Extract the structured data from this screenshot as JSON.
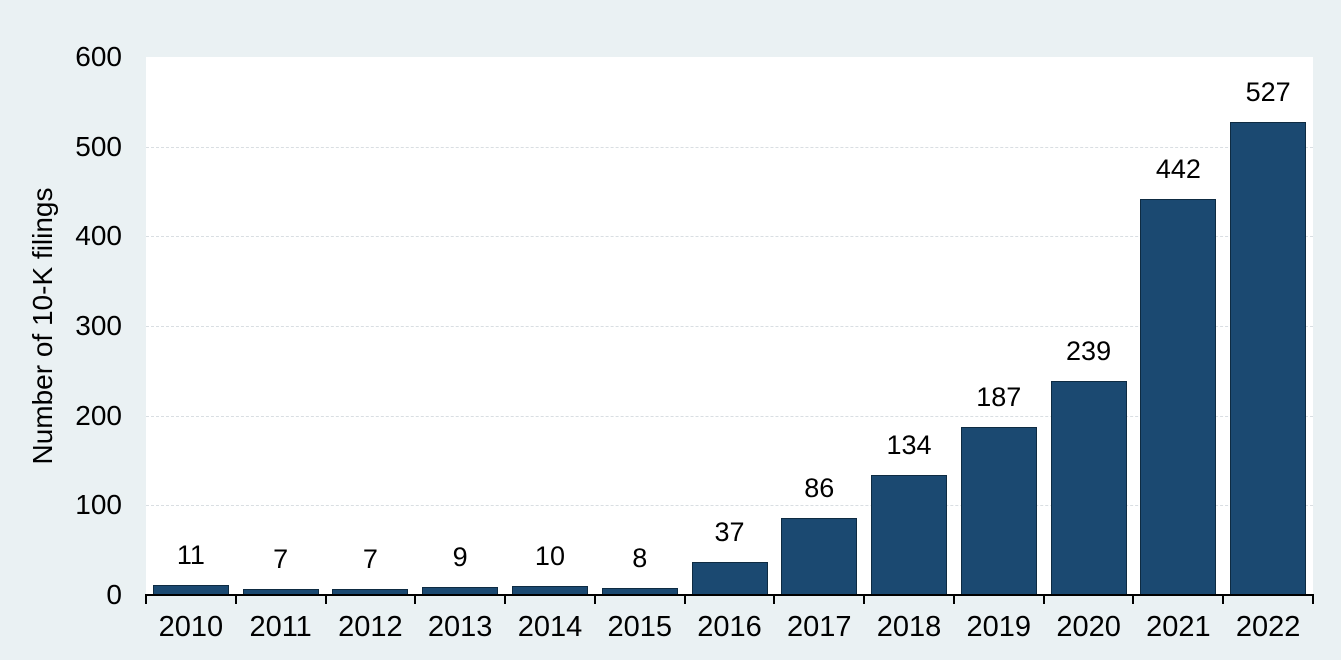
{
  "chart_data": {
    "type": "bar",
    "title": "",
    "xlabel": "",
    "ylabel": "Number of 10-K filings",
    "categories": [
      "2010",
      "2011",
      "2012",
      "2013",
      "2014",
      "2015",
      "2016",
      "2017",
      "2018",
      "2019",
      "2020",
      "2021",
      "2022"
    ],
    "values": [
      11,
      7,
      7,
      9,
      10,
      8,
      37,
      86,
      134,
      187,
      239,
      442,
      527
    ],
    "bar_value_labels": [
      "11",
      "7",
      "7",
      "9",
      "10",
      "8",
      "37",
      "86",
      "134",
      "187",
      "239",
      "442",
      "527"
    ],
    "ylim": [
      0,
      600
    ],
    "yticks": [
      0,
      100,
      200,
      300,
      400,
      500,
      600
    ],
    "ytick_labels": [
      "0",
      "100",
      "200",
      "300",
      "400",
      "500",
      "600"
    ],
    "grid": "horizontal-dashed",
    "legend": "none",
    "colors": {
      "page_background": "#eaf1f3",
      "plot_background": "#ffffff",
      "bar_fill": "#1b4971",
      "bar_border": "#0e2b42",
      "grid_line": "#d9dee2",
      "axis_line": "#000000",
      "text": "#000000"
    }
  }
}
